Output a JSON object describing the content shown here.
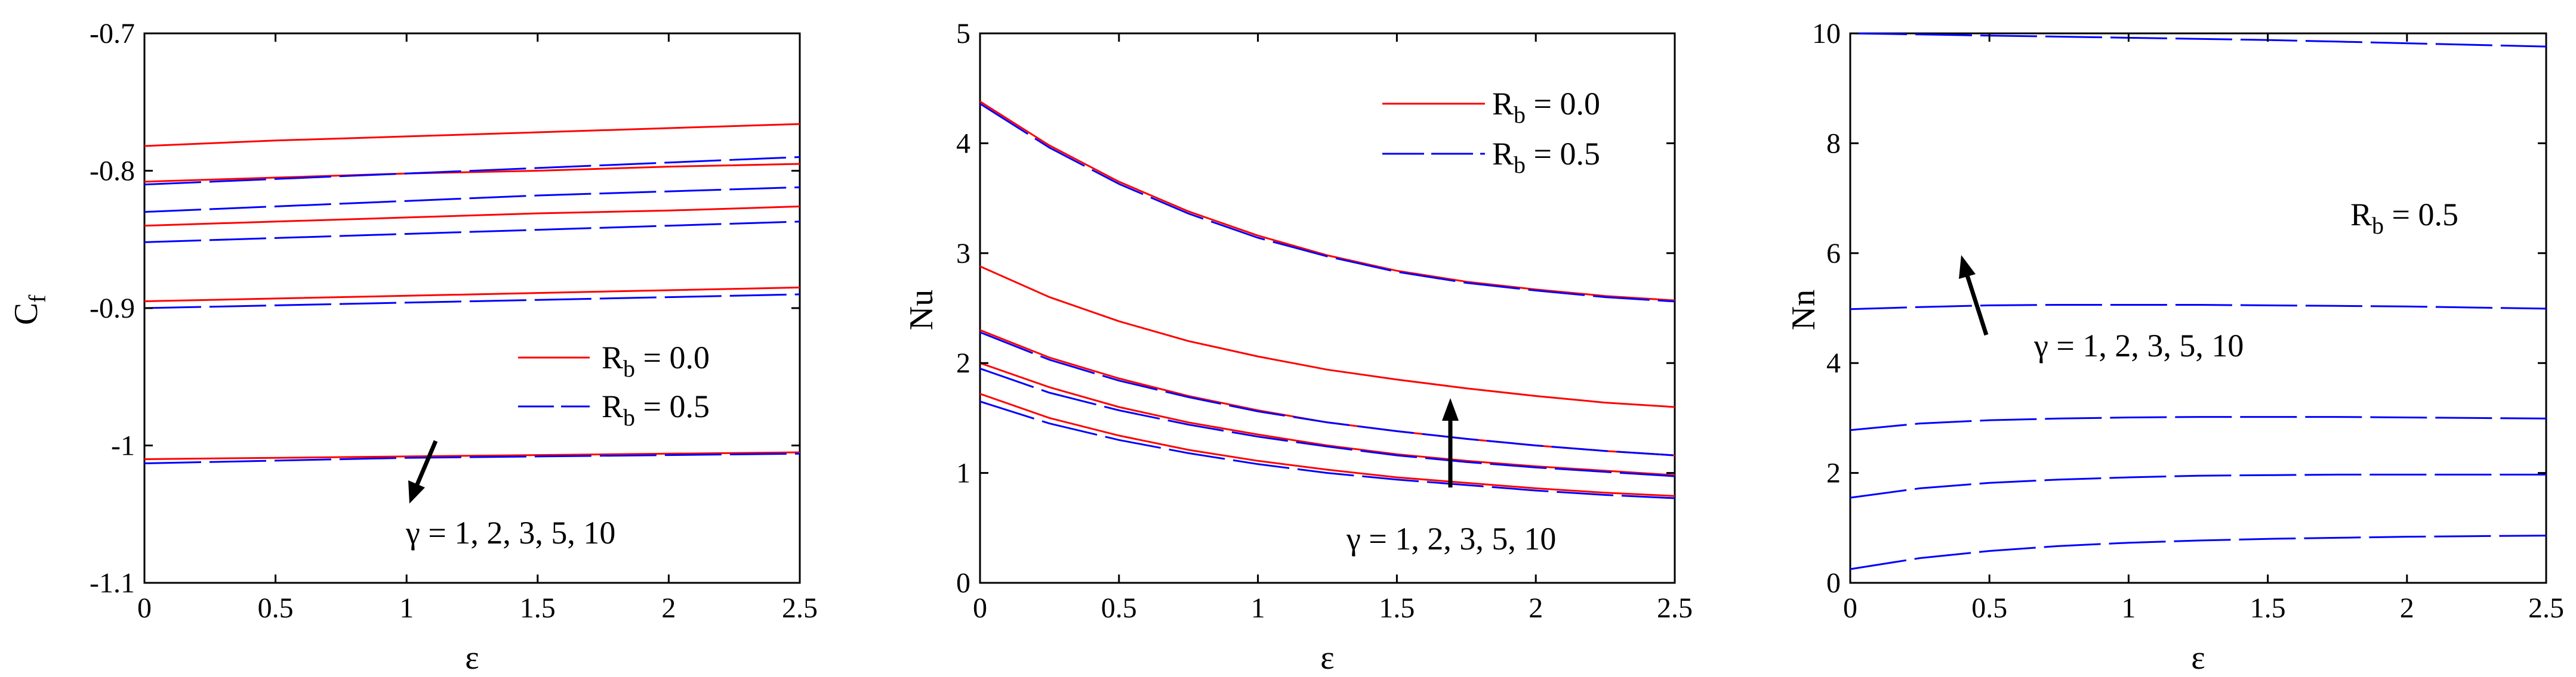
{
  "colors": {
    "red": "#ff0000",
    "blue": "#0000ff",
    "axis": "#000000"
  },
  "chart_data": [
    {
      "type": "line",
      "xlabel": "ε",
      "ylabel": {
        "main": "C",
        "sub": "f"
      },
      "xlim": [
        0,
        2.5
      ],
      "ylim": [
        -1.1,
        -0.7
      ],
      "x_ticks": [
        "0",
        "0.5",
        "1",
        "1.5",
        "2",
        "2.5"
      ],
      "y_ticks": [
        "-1.1",
        "-1",
        "-0.9",
        "-0.8",
        "-0.7"
      ],
      "legend": [
        {
          "label_main": "R",
          "label_sub": "b",
          "label_rest": " = 0.0",
          "color": "#ff0000",
          "style": "solid"
        },
        {
          "label_main": "R",
          "label_sub": "b",
          "label_rest": " = 0.5",
          "color": "#0000ff",
          "style": "dashed"
        }
      ],
      "annotation": "γ = 1, 2, 3, 5, 10",
      "series": [
        {
          "group": "R_b = 0.0",
          "color": "#ff0000",
          "dashed": false,
          "x": [
            0,
            0.5,
            1,
            1.5,
            2,
            2.5
          ],
          "y": [
            -0.782,
            -0.778,
            -0.775,
            -0.772,
            -0.769,
            -0.766
          ]
        },
        {
          "group": "R_b = 0.0",
          "color": "#ff0000",
          "dashed": false,
          "x": [
            0,
            0.5,
            1,
            1.5,
            2,
            2.5
          ],
          "y": [
            -0.808,
            -0.805,
            -0.802,
            -0.8,
            -0.797,
            -0.795
          ]
        },
        {
          "group": "R_b = 0.0",
          "color": "#ff0000",
          "dashed": false,
          "x": [
            0,
            0.5,
            1,
            1.5,
            2,
            2.5
          ],
          "y": [
            -0.84,
            -0.837,
            -0.834,
            -0.831,
            -0.829,
            -0.826
          ]
        },
        {
          "group": "R_b = 0.0",
          "color": "#ff0000",
          "dashed": false,
          "x": [
            0,
            0.5,
            1,
            1.5,
            2,
            2.5
          ],
          "y": [
            -0.895,
            -0.893,
            -0.891,
            -0.889,
            -0.887,
            -0.885
          ]
        },
        {
          "group": "R_b = 0.0",
          "color": "#ff0000",
          "dashed": false,
          "x": [
            0,
            0.5,
            1,
            1.5,
            2,
            2.5
          ],
          "y": [
            -1.01,
            -1.009,
            -1.008,
            -1.007,
            -1.006,
            -1.005
          ]
        },
        {
          "group": "R_b = 0.5",
          "color": "#0000ff",
          "dashed": true,
          "x": [
            0,
            0.5,
            1,
            1.5,
            2,
            2.5
          ],
          "y": [
            -0.81,
            -0.806,
            -0.802,
            -0.798,
            -0.794,
            -0.79
          ]
        },
        {
          "group": "R_b = 0.5",
          "color": "#0000ff",
          "dashed": true,
          "x": [
            0,
            0.5,
            1,
            1.5,
            2,
            2.5
          ],
          "y": [
            -0.83,
            -0.826,
            -0.822,
            -0.818,
            -0.815,
            -0.812
          ]
        },
        {
          "group": "R_b = 0.5",
          "color": "#0000ff",
          "dashed": true,
          "x": [
            0,
            0.5,
            1,
            1.5,
            2,
            2.5
          ],
          "y": [
            -0.852,
            -0.849,
            -0.846,
            -0.843,
            -0.84,
            -0.837
          ]
        },
        {
          "group": "R_b = 0.5",
          "color": "#0000ff",
          "dashed": true,
          "x": [
            0,
            0.5,
            1,
            1.5,
            2,
            2.5
          ],
          "y": [
            -0.9,
            -0.898,
            -0.896,
            -0.894,
            -0.892,
            -0.89
          ]
        },
        {
          "group": "R_b = 0.5",
          "color": "#0000ff",
          "dashed": true,
          "x": [
            0,
            0.5,
            1,
            1.5,
            2,
            2.5
          ],
          "y": [
            -1.013,
            -1.011,
            -1.009,
            -1.008,
            -1.007,
            -1.006
          ]
        }
      ]
    },
    {
      "type": "line",
      "xlabel": "ε",
      "ylabel": {
        "main": "Nu",
        "sub": ""
      },
      "xlim": [
        0,
        2.5
      ],
      "ylim": [
        0,
        5
      ],
      "x_ticks": [
        "0",
        "0.5",
        "1",
        "1.5",
        "2",
        "2.5"
      ],
      "y_ticks": [
        "0",
        "1",
        "2",
        "3",
        "4",
        "5"
      ],
      "legend": [
        {
          "label_main": "R",
          "label_sub": "b",
          "label_rest": " = 0.0",
          "color": "#ff0000",
          "style": "solid"
        },
        {
          "label_main": "R",
          "label_sub": "b",
          "label_rest": " = 0.5",
          "color": "#0000ff",
          "style": "dashed"
        }
      ],
      "annotation": "γ = 1, 2, 3, 5, 10",
      "series": [
        {
          "group": "R_b = 0.0",
          "color": "#ff0000",
          "dashed": false,
          "x": [
            0,
            0.25,
            0.5,
            0.75,
            1,
            1.25,
            1.5,
            1.75,
            2,
            2.25,
            2.5
          ],
          "y": [
            4.38,
            3.98,
            3.65,
            3.38,
            3.16,
            2.98,
            2.84,
            2.74,
            2.67,
            2.61,
            2.57
          ]
        },
        {
          "group": "R_b = 0.0",
          "color": "#ff0000",
          "dashed": false,
          "x": [
            0,
            0.25,
            0.5,
            0.75,
            1,
            1.25,
            1.5,
            1.75,
            2,
            2.25,
            2.5
          ],
          "y": [
            2.88,
            2.6,
            2.38,
            2.2,
            2.06,
            1.94,
            1.85,
            1.77,
            1.7,
            1.64,
            1.6
          ]
        },
        {
          "group": "R_b = 0.0",
          "color": "#ff0000",
          "dashed": false,
          "x": [
            0,
            0.25,
            0.5,
            0.75,
            1,
            1.25,
            1.5,
            1.75,
            2,
            2.25,
            2.5
          ],
          "y": [
            2.3,
            2.05,
            1.86,
            1.7,
            1.57,
            1.46,
            1.38,
            1.31,
            1.25,
            1.2,
            1.16
          ]
        },
        {
          "group": "R_b = 0.0",
          "color": "#ff0000",
          "dashed": false,
          "x": [
            0,
            0.25,
            0.5,
            0.75,
            1,
            1.25,
            1.5,
            1.75,
            2,
            2.25,
            2.5
          ],
          "y": [
            2.0,
            1.78,
            1.6,
            1.46,
            1.35,
            1.25,
            1.17,
            1.11,
            1.06,
            1.02,
            0.98
          ]
        },
        {
          "group": "R_b = 0.0",
          "color": "#ff0000",
          "dashed": false,
          "x": [
            0,
            0.25,
            0.5,
            0.75,
            1,
            1.25,
            1.5,
            1.75,
            2,
            2.25,
            2.5
          ],
          "y": [
            1.72,
            1.5,
            1.34,
            1.21,
            1.11,
            1.03,
            0.96,
            0.91,
            0.86,
            0.82,
            0.79
          ]
        },
        {
          "group": "R_b = 0.5",
          "color": "#0000ff",
          "dashed": true,
          "x": [
            0,
            0.25,
            0.5,
            0.75,
            1,
            1.25,
            1.5,
            1.75,
            2,
            2.25,
            2.5
          ],
          "y": [
            4.36,
            3.96,
            3.63,
            3.36,
            3.14,
            2.97,
            2.83,
            2.73,
            2.66,
            2.6,
            2.56
          ]
        },
        {
          "group": "R_b = 0.5",
          "color": "#0000ff",
          "dashed": true,
          "x": [
            0,
            0.25,
            0.5,
            0.75,
            1,
            1.25,
            1.5,
            1.75,
            2,
            2.25,
            2.5
          ],
          "y": [
            2.28,
            2.03,
            1.84,
            1.69,
            1.56,
            1.46,
            1.38,
            1.31,
            1.25,
            1.2,
            1.16
          ]
        },
        {
          "group": "R_b = 0.5",
          "color": "#0000ff",
          "dashed": true,
          "x": [
            0,
            0.25,
            0.5,
            0.75,
            1,
            1.25,
            1.5,
            1.75,
            2,
            2.25,
            2.5
          ],
          "y": [
            1.95,
            1.73,
            1.57,
            1.44,
            1.33,
            1.24,
            1.16,
            1.1,
            1.05,
            1.01,
            0.97
          ]
        },
        {
          "group": "R_b = 0.5",
          "color": "#0000ff",
          "dashed": true,
          "x": [
            0,
            0.25,
            0.5,
            0.75,
            1,
            1.25,
            1.5,
            1.75,
            2,
            2.25,
            2.5
          ],
          "y": [
            1.65,
            1.45,
            1.3,
            1.18,
            1.08,
            1.0,
            0.94,
            0.89,
            0.84,
            0.8,
            0.77
          ]
        }
      ]
    },
    {
      "type": "line",
      "xlabel": "ε",
      "ylabel": {
        "main": "Nn",
        "sub": ""
      },
      "xlim": [
        0,
        2.5
      ],
      "ylim": [
        0,
        10
      ],
      "x_ticks": [
        "0",
        "0.5",
        "1",
        "1.5",
        "2",
        "2.5"
      ],
      "y_ticks": [
        "0",
        "2",
        "4",
        "6",
        "8",
        "10"
      ],
      "legend": [],
      "label": {
        "main": "R",
        "sub": "b",
        "rest": " = 0.5"
      },
      "annotation": "γ = 1, 2, 3, 5, 10",
      "series": [
        {
          "group": "R_b = 0.5",
          "color": "#0000ff",
          "dashed": true,
          "x": [
            0,
            0.25,
            0.5,
            0.75,
            1,
            1.25,
            1.5,
            1.75,
            2,
            2.25,
            2.5
          ],
          "y": [
            10.0,
            9.98,
            9.96,
            9.94,
            9.92,
            9.9,
            9.88,
            9.85,
            9.82,
            9.79,
            9.76
          ]
        },
        {
          "group": "R_b = 0.5",
          "color": "#0000ff",
          "dashed": true,
          "x": [
            0,
            0.25,
            0.5,
            0.75,
            1,
            1.25,
            1.5,
            1.75,
            2,
            2.25,
            2.5
          ],
          "y": [
            4.98,
            5.02,
            5.05,
            5.06,
            5.06,
            5.06,
            5.05,
            5.04,
            5.03,
            5.01,
            4.99
          ]
        },
        {
          "group": "R_b = 0.5",
          "color": "#0000ff",
          "dashed": true,
          "x": [
            0,
            0.25,
            0.5,
            0.75,
            1,
            1.25,
            1.5,
            1.75,
            2,
            2.25,
            2.5
          ],
          "y": [
            2.78,
            2.9,
            2.96,
            2.99,
            3.01,
            3.02,
            3.02,
            3.02,
            3.01,
            3.0,
            2.99
          ]
        },
        {
          "group": "R_b = 0.5",
          "color": "#0000ff",
          "dashed": true,
          "x": [
            0,
            0.25,
            0.5,
            0.75,
            1,
            1.25,
            1.5,
            1.75,
            2,
            2.25,
            2.5
          ],
          "y": [
            1.55,
            1.72,
            1.82,
            1.88,
            1.92,
            1.95,
            1.96,
            1.97,
            1.97,
            1.97,
            1.97
          ]
        },
        {
          "group": "R_b = 0.5",
          "color": "#0000ff",
          "dashed": true,
          "x": [
            0,
            0.25,
            0.5,
            0.75,
            1,
            1.25,
            1.5,
            1.75,
            2,
            2.25,
            2.5
          ],
          "y": [
            0.25,
            0.45,
            0.58,
            0.67,
            0.73,
            0.77,
            0.8,
            0.82,
            0.84,
            0.85,
            0.86
          ]
        }
      ]
    }
  ]
}
